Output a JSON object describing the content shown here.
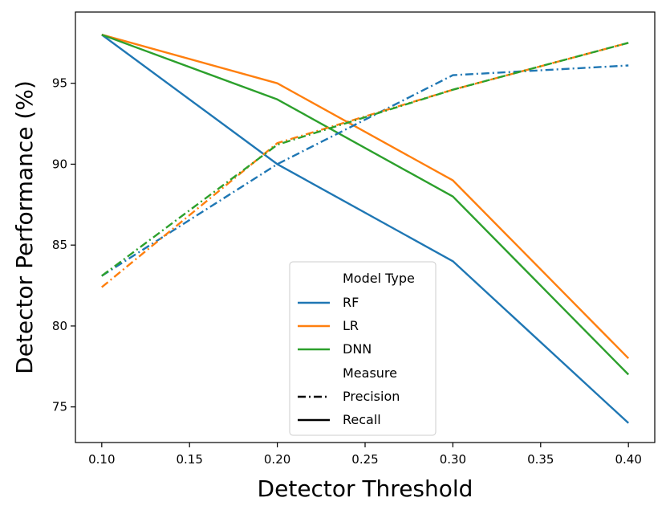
{
  "chart_data": {
    "type": "line",
    "title": "",
    "xlabel": "Detector Threshold",
    "ylabel": "Detector Performance (%)",
    "xlim": [
      0.085,
      0.415
    ],
    "ylim": [
      72.8,
      99.4
    ],
    "xticks": [
      "0.10",
      "0.15",
      "0.20",
      "0.25",
      "0.30",
      "0.35",
      "0.40"
    ],
    "xtick_values": [
      0.1,
      0.15,
      0.2,
      0.25,
      0.3,
      0.35,
      0.4
    ],
    "yticks": [
      "75",
      "80",
      "85",
      "90",
      "95"
    ],
    "ytick_values": [
      75,
      80,
      85,
      90,
      95
    ],
    "grid": false,
    "x": [
      0.1,
      0.2,
      0.3,
      0.4
    ],
    "series": [
      {
        "name": "RF",
        "measure": "Recall",
        "color": "#1f77b4",
        "style": "solid",
        "values": [
          98.0,
          90.0,
          84.0,
          74.0
        ]
      },
      {
        "name": "LR",
        "measure": "Recall",
        "color": "#ff7f0e",
        "style": "solid",
        "values": [
          98.0,
          95.0,
          89.0,
          78.0
        ]
      },
      {
        "name": "DNN",
        "measure": "Recall",
        "color": "#2ca02c",
        "style": "solid",
        "values": [
          98.0,
          94.0,
          88.0,
          77.0
        ]
      },
      {
        "name": "RF",
        "measure": "Precision",
        "color": "#1f77b4",
        "style": "dashdot",
        "values": [
          83.1,
          90.0,
          95.5,
          96.1
        ]
      },
      {
        "name": "LR",
        "measure": "Precision",
        "color": "#ff7f0e",
        "style": "dashdot",
        "values": [
          82.4,
          91.3,
          94.6,
          97.5
        ]
      },
      {
        "name": "DNN",
        "measure": "Precision",
        "color": "#2ca02c",
        "style": "dashdot",
        "values": [
          83.1,
          91.2,
          94.6,
          97.5
        ]
      }
    ],
    "legend": {
      "position": "lower-center",
      "model_header": "Model Type",
      "models": [
        {
          "label": "RF",
          "color": "#1f77b4"
        },
        {
          "label": "LR",
          "color": "#ff7f0e"
        },
        {
          "label": "DNN",
          "color": "#2ca02c"
        }
      ],
      "measure_header": "Measure",
      "measures": [
        {
          "label": "Precision",
          "style": "dashdot"
        },
        {
          "label": "Recall",
          "style": "solid"
        }
      ]
    }
  }
}
